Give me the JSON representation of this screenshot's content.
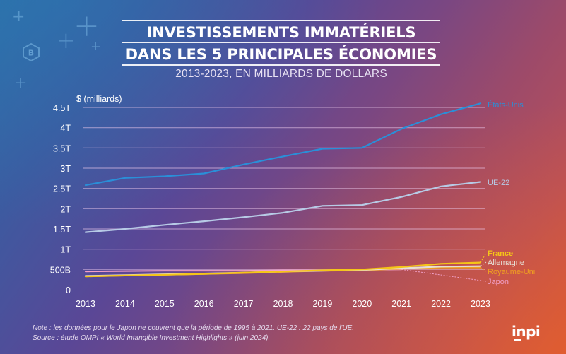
{
  "header": {
    "title_line1": "INVESTISSEMENTS IMMATÉRIELS",
    "title_line2": "DANS LES 5 PRINCIPALES ÉCONOMIES",
    "subtitle": "2013-2023, EN MILLIARDS DE DOLLARS"
  },
  "decorations": {
    "badge_letter": "B",
    "icons": [
      "plus-icon",
      "plus-icon",
      "plus-icon",
      "plus-icon",
      "plus-icon",
      "hexagon-badge-icon"
    ]
  },
  "footer": {
    "note": "Note : les données pour le Japon ne couvrent que la période de 1995 à 2021. UE-22 : 22 pays de l'UE.",
    "source": "Source : étude OMPI « World Intangible Investment Highlights » (juin 2024).",
    "logo": "inpi"
  },
  "chart_data": {
    "type": "line",
    "title": "Investissements immatériels dans les 5 principales économies",
    "subtitle": "2013-2023, en milliards de dollars",
    "xlabel": "",
    "ylabel": "$ (milliards)",
    "ylim": [
      0,
      4.5
    ],
    "unit": "trillions USD",
    "grid": true,
    "legend": "inline-right",
    "x": [
      "2013",
      "2014",
      "2015",
      "2016",
      "2017",
      "2018",
      "2019",
      "2020",
      "2021",
      "2022",
      "2023"
    ],
    "yticks": [
      0,
      0.5,
      1,
      1.5,
      2,
      2.5,
      3,
      3.5,
      4,
      4.5
    ],
    "ytick_labels": [
      "0",
      "500B",
      "1T",
      "1.5T",
      "2T",
      "2.5T",
      "3T",
      "3.5T",
      "4T",
      "4.5T"
    ],
    "series": [
      {
        "name": "États-Unis",
        "color": "#2a8fd8",
        "values": [
          2.58,
          2.76,
          2.8,
          2.87,
          3.09,
          3.29,
          3.48,
          3.5,
          3.97,
          4.33,
          4.6
        ]
      },
      {
        "name": "UE-22",
        "color": "#b7cbe6",
        "values": [
          1.42,
          1.5,
          1.6,
          1.69,
          1.79,
          1.9,
          2.07,
          2.09,
          2.29,
          2.55,
          2.66
        ]
      },
      {
        "name": "France",
        "color": "#f5c518",
        "values": [
          0.33,
          0.35,
          0.37,
          0.39,
          0.42,
          0.45,
          0.48,
          0.5,
          0.56,
          0.64,
          0.67
        ]
      },
      {
        "name": "Allemagne",
        "color": "#e6e0d6",
        "values": [
          0.34,
          0.36,
          0.38,
          0.4,
          0.42,
          0.45,
          0.47,
          0.49,
          0.53,
          0.57,
          0.58
        ]
      },
      {
        "name": "Royaume-Uni",
        "color": "#f0a020",
        "values": [
          0.33,
          0.35,
          0.37,
          0.39,
          0.41,
          0.44,
          0.47,
          0.48,
          0.52,
          0.55,
          0.55
        ]
      },
      {
        "name": "Japon",
        "color": "#f2a0c8",
        "values": [
          0.45,
          0.46,
          0.47,
          0.47,
          0.47,
          0.48,
          0.48,
          0.49,
          0.5,
          null,
          null
        ]
      }
    ]
  }
}
